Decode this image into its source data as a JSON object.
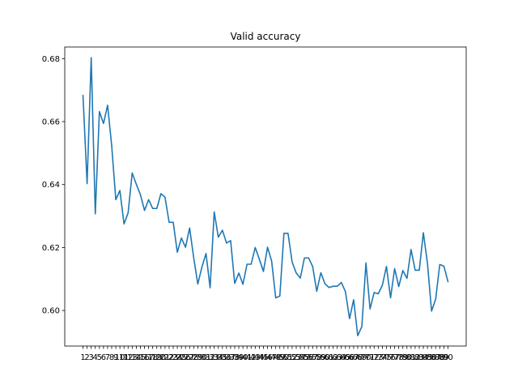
{
  "chart_data": {
    "type": "line",
    "title": "Valid accuracy",
    "xlabel": "",
    "ylabel": "",
    "xlim": [
      -3.45,
      94.45
    ],
    "ylim": [
      0.5887,
      0.6837
    ],
    "yticks": [
      "0.60",
      "0.62",
      "0.64",
      "0.66",
      "0.68"
    ],
    "ytick_values": [
      0.6,
      0.62,
      0.64,
      0.66,
      0.68
    ],
    "grid": false,
    "legend": "none",
    "colors": {
      "line": "#1f77b4",
      "axes": "#000000",
      "background": "#ffffff"
    },
    "x": [
      1,
      2,
      3,
      4,
      5,
      6,
      7,
      8,
      9,
      10,
      11,
      12,
      13,
      14,
      15,
      16,
      17,
      18,
      19,
      20,
      21,
      22,
      23,
      24,
      25,
      26,
      27,
      28,
      29,
      30,
      31,
      32,
      33,
      34,
      35,
      36,
      37,
      38,
      39,
      40,
      41,
      42,
      43,
      44,
      45,
      46,
      47,
      48,
      49,
      50,
      51,
      52,
      53,
      54,
      55,
      56,
      57,
      58,
      59,
      60,
      61,
      62,
      63,
      64,
      65,
      66,
      67,
      68,
      69,
      70,
      71,
      72,
      73,
      74,
      75,
      76,
      77,
      78,
      79,
      80,
      81,
      82,
      83,
      84,
      85,
      86,
      87,
      88,
      89,
      90
    ],
    "series": [
      {
        "values": [
          0.6683,
          0.6403,
          0.6803,
          0.6307,
          0.6632,
          0.6594,
          0.6652,
          0.6523,
          0.6352,
          0.6381,
          0.6275,
          0.631,
          0.6437,
          0.6401,
          0.6368,
          0.6318,
          0.6352,
          0.6324,
          0.6324,
          0.6371,
          0.636,
          0.628,
          0.628,
          0.6185,
          0.623,
          0.6201,
          0.6262,
          0.6167,
          0.6084,
          0.6138,
          0.6181,
          0.6072,
          0.6313,
          0.6233,
          0.6255,
          0.6214,
          0.6222,
          0.6086,
          0.6119,
          0.6083,
          0.6147,
          0.6147,
          0.62,
          0.6163,
          0.6124,
          0.6201,
          0.6157,
          0.604,
          0.6046,
          0.6245,
          0.6245,
          0.6154,
          0.6119,
          0.6103,
          0.6167,
          0.6167,
          0.614,
          0.6061,
          0.612,
          0.6085,
          0.6073,
          0.6077,
          0.6077,
          0.6089,
          0.606,
          0.5974,
          0.6034,
          0.592,
          0.5949,
          0.6151,
          0.6005,
          0.6057,
          0.6053,
          0.608,
          0.614,
          0.604,
          0.6133,
          0.6076,
          0.6127,
          0.6102,
          0.6194,
          0.6128,
          0.6128,
          0.6247,
          0.615,
          0.5998,
          0.6036,
          0.6146,
          0.6141,
          0.6092
        ]
      }
    ]
  }
}
